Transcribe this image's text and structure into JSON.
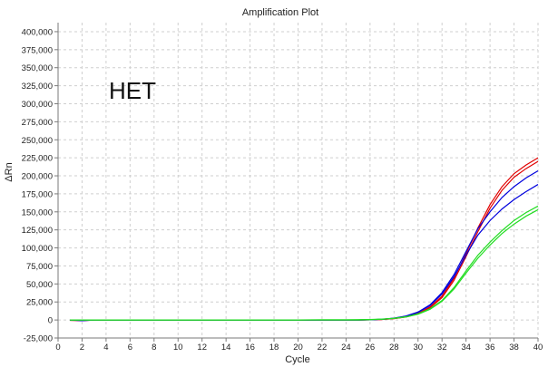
{
  "chart_data": {
    "type": "line",
    "title": "Amplification Plot",
    "xlabel": "Cycle",
    "ylabel": "ΔRn",
    "annotation": "HET",
    "xlim": [
      0,
      40
    ],
    "ylim": [
      -25000,
      412500
    ],
    "xticks": [
      0,
      2,
      4,
      6,
      8,
      10,
      12,
      14,
      16,
      18,
      20,
      22,
      24,
      26,
      28,
      30,
      32,
      34,
      36,
      38,
      40
    ],
    "yticks": [
      -25000,
      0,
      25000,
      50000,
      75000,
      100000,
      125000,
      150000,
      175000,
      200000,
      225000,
      250000,
      275000,
      300000,
      325000,
      350000,
      375000,
      400000
    ],
    "ytick_labels": [
      "-25,000",
      "0",
      "25,000",
      "50,000",
      "75,000",
      "100,000",
      "125,000",
      "150,000",
      "175,000",
      "200,000",
      "225,000",
      "250,000",
      "275,000",
      "300,000",
      "325,000",
      "350,000",
      "375,000",
      "400,000"
    ],
    "grid": true,
    "x": [
      1,
      2,
      3,
      4,
      5,
      6,
      7,
      8,
      9,
      10,
      11,
      12,
      13,
      14,
      15,
      16,
      17,
      18,
      19,
      20,
      21,
      22,
      23,
      24,
      25,
      26,
      27,
      28,
      29,
      30,
      31,
      32,
      33,
      34,
      35,
      36,
      37,
      38,
      39,
      40
    ],
    "series": [
      {
        "color": "#e00000",
        "values": [
          0,
          -500,
          0,
          0,
          0,
          0,
          0,
          0,
          0,
          0,
          0,
          0,
          0,
          0,
          0,
          0,
          0,
          0,
          0,
          0,
          0,
          0,
          0,
          0,
          0,
          200,
          800,
          2000,
          4500,
          9000,
          18000,
          33000,
          58000,
          92000,
          128000,
          160000,
          185000,
          203000,
          215000,
          225000
        ]
      },
      {
        "color": "#e00000",
        "values": [
          -500,
          -1000,
          0,
          0,
          0,
          0,
          0,
          0,
          0,
          0,
          0,
          0,
          0,
          0,
          0,
          0,
          0,
          0,
          0,
          0,
          0,
          0,
          0,
          0,
          0,
          200,
          700,
          1800,
          4200,
          8500,
          17000,
          31000,
          55000,
          88000,
          123000,
          155000,
          180000,
          198000,
          210000,
          220000
        ]
      },
      {
        "color": "#0000dd",
        "values": [
          0,
          0,
          0,
          0,
          0,
          0,
          0,
          0,
          0,
          0,
          0,
          0,
          0,
          0,
          0,
          0,
          0,
          0,
          0,
          0,
          0,
          0,
          0,
          0,
          0,
          300,
          1000,
          2500,
          5500,
          11000,
          21000,
          38000,
          63000,
          95000,
          127000,
          150000,
          170000,
          185000,
          197000,
          207000
        ]
      },
      {
        "color": "#0000dd",
        "values": [
          0,
          -1000,
          0,
          0,
          0,
          0,
          0,
          0,
          0,
          0,
          0,
          0,
          0,
          0,
          0,
          0,
          0,
          0,
          0,
          0,
          0,
          0,
          0,
          0,
          0,
          300,
          1000,
          2400,
          5200,
          10500,
          20000,
          36000,
          60000,
          90000,
          118000,
          138000,
          154000,
          167000,
          178000,
          188000
        ]
      },
      {
        "color": "#22dd22",
        "values": [
          0,
          0,
          0,
          0,
          0,
          0,
          0,
          0,
          0,
          0,
          0,
          0,
          0,
          0,
          0,
          0,
          0,
          0,
          0,
          0,
          200,
          300,
          300,
          400,
          500,
          700,
          1200,
          2300,
          4500,
          8500,
          15500,
          27000,
          45000,
          68000,
          90000,
          108000,
          124000,
          138000,
          149000,
          158000
        ]
      },
      {
        "color": "#22dd22",
        "values": [
          0,
          0,
          0,
          0,
          0,
          0,
          0,
          0,
          0,
          0,
          0,
          0,
          0,
          0,
          0,
          0,
          0,
          0,
          0,
          0,
          0,
          0,
          0,
          0,
          0,
          500,
          1000,
          2100,
          4200,
          8000,
          14800,
          26000,
          43000,
          65000,
          86000,
          104000,
          120000,
          133000,
          144000,
          153000
        ]
      }
    ]
  }
}
